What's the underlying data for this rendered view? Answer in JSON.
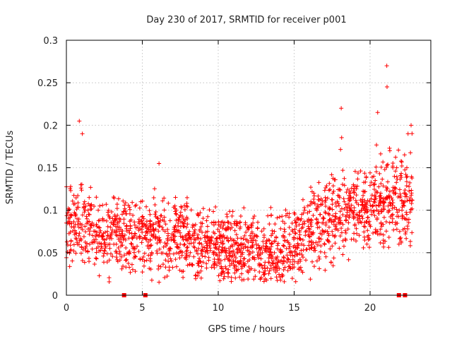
{
  "chart_data": {
    "type": "scatter",
    "title": "Day 230 of 2017, SRMTID for receiver p001",
    "xlabel": "GPS time / hours",
    "ylabel": "SRMTID / TECUs",
    "xlim": [
      0,
      24
    ],
    "ylim": [
      0,
      0.3
    ],
    "x_ticks": [
      0,
      5,
      10,
      15,
      20
    ],
    "y_ticks": [
      0,
      0.05,
      0.1,
      0.15,
      0.2,
      0.25,
      0.3
    ],
    "x_tick_labels": [
      "0",
      "5",
      "10",
      "15",
      "20"
    ],
    "y_tick_labels": [
      "0",
      "0.05",
      "0.1",
      "0.15",
      "0.2",
      "0.25",
      "0.3"
    ],
    "grid": true,
    "marker": "plus",
    "series": [
      {
        "name": "SRMTID",
        "color": "#ff0000",
        "description": "Dense scatter of SRMTID values per 5-minute interval across the day; values mostly 0.03-0.12 TECU with spikes near 1 h (~0.21), 18 h (~0.22), 20 h (~0.215) and 21 h (~0.27)",
        "x": [
          0.0,
          0.15,
          0.3,
          0.5,
          0.7,
          0.85,
          0.95,
          1.05,
          1.2,
          1.35,
          1.5,
          1.7,
          1.9,
          2.1,
          2.3,
          2.5,
          2.7,
          2.9,
          3.1,
          3.3,
          3.5,
          3.7,
          3.9,
          4.1,
          4.3,
          4.5,
          4.7,
          4.9,
          5.1,
          5.3,
          5.5,
          5.7,
          5.9,
          6.1,
          6.3,
          6.5,
          6.7,
          6.9,
          7.1,
          7.3,
          7.5,
          7.7,
          7.9,
          8.1,
          8.3,
          8.5,
          8.7,
          8.9,
          9.1,
          9.3,
          9.5,
          9.7,
          9.9,
          10.1,
          10.3,
          10.5,
          10.7,
          10.9,
          11.1,
          11.3,
          11.5,
          11.7,
          11.9,
          12.1,
          12.3,
          12.5,
          12.7,
          12.9,
          13.1,
          13.3,
          13.5,
          13.7,
          13.9,
          14.1,
          14.3,
          14.5,
          14.7,
          14.9,
          15.1,
          15.3,
          15.5,
          15.7,
          15.9,
          16.1,
          16.3,
          16.5,
          16.7,
          16.9,
          17.1,
          17.3,
          17.5,
          17.7,
          17.9,
          18.1,
          18.3,
          18.5,
          18.7,
          18.9,
          19.1,
          19.3,
          19.5,
          19.7,
          19.9,
          20.1,
          20.3,
          20.5,
          20.7,
          20.9,
          21.1,
          21.3,
          21.5,
          21.7,
          21.9,
          22.1,
          22.3,
          22.5,
          22.7
        ],
        "y": [
          0.085,
          0.1,
          0.095,
          0.08,
          0.09,
          0.205,
          0.13,
          0.19,
          0.11,
          0.09,
          0.115,
          0.085,
          0.075,
          0.07,
          0.06,
          0.065,
          0.075,
          0.08,
          0.085,
          0.09,
          0.08,
          0.07,
          0.065,
          0.05,
          0.06,
          0.07,
          0.08,
          0.11,
          0.09,
          0.08,
          0.075,
          0.07,
          0.085,
          0.155,
          0.08,
          0.075,
          0.07,
          0.065,
          0.08,
          0.075,
          0.06,
          0.065,
          0.07,
          0.075,
          0.08,
          0.065,
          0.055,
          0.06,
          0.07,
          0.075,
          0.065,
          0.06,
          0.055,
          0.07,
          0.06,
          0.05,
          0.055,
          0.065,
          0.06,
          0.055,
          0.05,
          0.06,
          0.065,
          0.07,
          0.065,
          0.06,
          0.055,
          0.05,
          0.055,
          0.065,
          0.06,
          0.05,
          0.045,
          0.04,
          0.045,
          0.055,
          0.06,
          0.075,
          0.085,
          0.09,
          0.095,
          0.1,
          0.105,
          0.11,
          0.12,
          0.1,
          0.095,
          0.09,
          0.085,
          0.08,
          0.075,
          0.07,
          0.09,
          0.22,
          0.11,
          0.1,
          0.12,
          0.13,
          0.095,
          0.09,
          0.11,
          0.1,
          0.085,
          0.095,
          0.13,
          0.215,
          0.12,
          0.11,
          0.27,
          0.17,
          0.15,
          0.12,
          0.06,
          0.1,
          0.12,
          0.19,
          0.2
        ]
      }
    ],
    "zero_markers_x": [
      3.8,
      5.2,
      21.9,
      22.3
    ]
  }
}
